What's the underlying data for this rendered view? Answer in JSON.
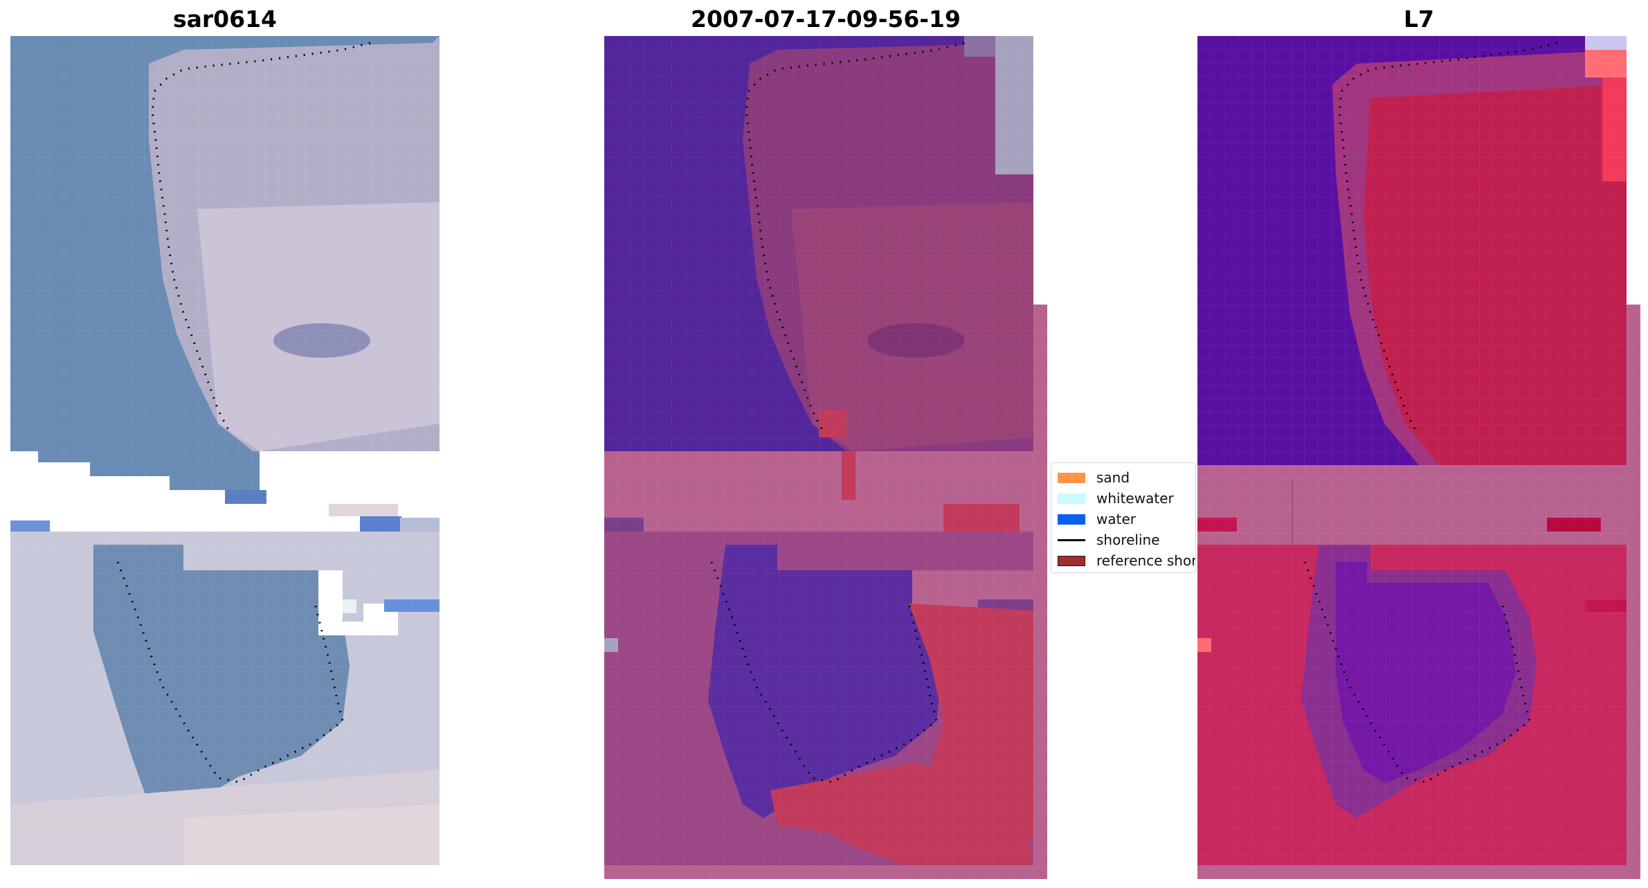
{
  "panels": [
    {
      "title": "sar0614"
    },
    {
      "title": "2007-07-17-09-56-19"
    },
    {
      "title": "L7"
    }
  ],
  "legend": {
    "items": [
      {
        "label": "sand",
        "color": "#ff9347",
        "kind": "patch"
      },
      {
        "label": "whitewater",
        "color": "#c9fbff",
        "kind": "patch"
      },
      {
        "label": "water",
        "color": "#0a5ff2",
        "kind": "patch"
      },
      {
        "label": "shoreline",
        "color": "#000000",
        "kind": "line"
      },
      {
        "label": "reference shoreline",
        "color": "#9c3030",
        "kind": "patch",
        "edge": "#3a0a0a"
      }
    ]
  }
}
